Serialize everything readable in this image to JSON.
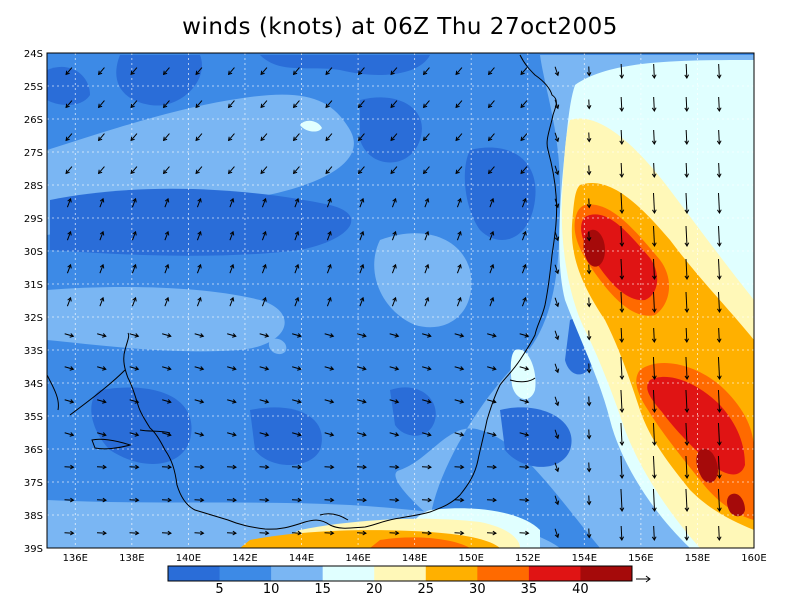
{
  "title": "winds (knots) at 06Z Thu 27oct2005",
  "map": {
    "lon_range": [
      135,
      160
    ],
    "lat_range": [
      -39,
      -24
    ],
    "x_ticks": [
      "136E",
      "138E",
      "140E",
      "142E",
      "144E",
      "146E",
      "148E",
      "150E",
      "152E",
      "154E",
      "156E",
      "158E",
      "160E"
    ],
    "y_ticks": [
      "24S",
      "25S",
      "26S",
      "27S",
      "28S",
      "29S",
      "30S",
      "31S",
      "32S",
      "33S",
      "34S",
      "35S",
      "36S",
      "37S",
      "38S",
      "39S"
    ],
    "grid": true,
    "colors": {
      "lt5": "#2a6dd8",
      "5-10": "#3d8ae6",
      "10-15": "#7ab6f3",
      "15-20": "#e0ffff",
      "20-25": "#fff8b8",
      "25-30": "#ffb000",
      "30-35": "#ff6a00",
      "35-40": "#e01414",
      "gt40": "#a50a0a"
    }
  },
  "colorbar": {
    "labels": [
      "5",
      "10",
      "15",
      "20",
      "25",
      "30",
      "35",
      "40"
    ],
    "colors": [
      "#2a6dd8",
      "#3d8ae6",
      "#7ab6f3",
      "#e0ffff",
      "#fff8b8",
      "#ffb000",
      "#ff6a00",
      "#e01414",
      "#a50a0a"
    ]
  }
}
